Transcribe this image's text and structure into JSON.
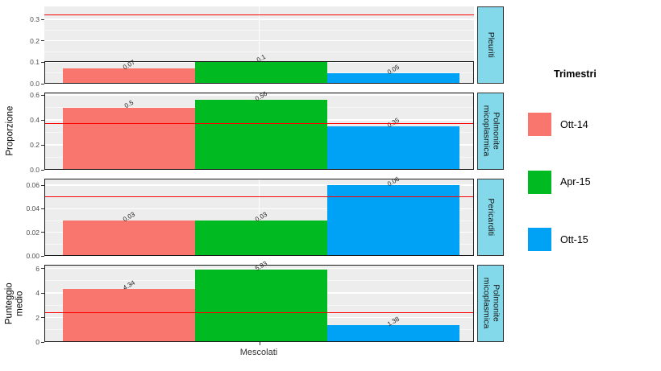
{
  "chart_data": {
    "type": "bar",
    "orientation": "vertical",
    "facets_arrangement": "rows",
    "categories": [
      "Mescolati"
    ],
    "xlabel": "Mescolati",
    "ylabel_top": "Proporzione",
    "ylabel_bottom": "Punteggio\nmedio",
    "legend": {
      "title": "Trimestri",
      "position": "right"
    },
    "series": [
      {
        "name": "Ott-14",
        "color": "#F8766D",
        "values": [
          0.07,
          0.5,
          0.03,
          4.34
        ]
      },
      {
        "name": "Apr-15",
        "color": "#00BA22",
        "values": [
          0.1,
          0.56,
          0.03,
          5.93
        ]
      },
      {
        "name": "Ott-15",
        "color": "#00A2F5",
        "values": [
          0.05,
          0.35,
          0.06,
          1.38
        ]
      }
    ],
    "facets": [
      {
        "strip": "Pleuriti",
        "ylim": [
          0,
          0.36
        ],
        "ticks": [
          0,
          0.1,
          0.2,
          0.3
        ],
        "tick_labels": [
          "0.0",
          "0.1",
          "0.2",
          "0.3"
        ],
        "ref_line": 0.32,
        "frame_top": 0.105,
        "values": [
          0.07,
          0.1,
          0.05
        ],
        "bar_labels": [
          "0.07",
          "0.1",
          "0.05"
        ]
      },
      {
        "strip": "Polmonite\nmicoplasmica",
        "ylim": [
          0,
          0.62
        ],
        "ticks": [
          0,
          0.2,
          0.4,
          0.6
        ],
        "tick_labels": [
          "0.0",
          "0.2",
          "0.4",
          "0.6"
        ],
        "ref_line": 0.37,
        "frame_top": null,
        "values": [
          0.5,
          0.56,
          0.35
        ],
        "bar_labels": [
          "0.5",
          "0.56",
          "0.35"
        ]
      },
      {
        "strip": "Pericarditi",
        "ylim": [
          0,
          0.0655
        ],
        "ticks": [
          0,
          0.02,
          0.04,
          0.06
        ],
        "tick_labels": [
          "0.00",
          "0.02",
          "0.04",
          "0.06"
        ],
        "ref_line": 0.05,
        "frame_top": null,
        "values": [
          0.03,
          0.03,
          0.06
        ],
        "bar_labels": [
          "0.03",
          "0.03",
          "0.06"
        ]
      },
      {
        "strip": "Polmonite\nmicoplasmica",
        "ylim": [
          0,
          6.3
        ],
        "ticks": [
          0,
          2,
          4,
          6
        ],
        "tick_labels": [
          "0",
          "2",
          "4",
          "6"
        ],
        "ref_line": 2.4,
        "frame_top": null,
        "values": [
          4.34,
          5.93,
          1.38
        ],
        "bar_labels": [
          "4.34",
          "5.93",
          "1.38"
        ]
      }
    ],
    "colors": {
      "ref_line": "#FF0000",
      "strip_bg": "#83D9EA",
      "panel_bg": "#EDEDED",
      "grid": "#FFFFFF"
    }
  }
}
